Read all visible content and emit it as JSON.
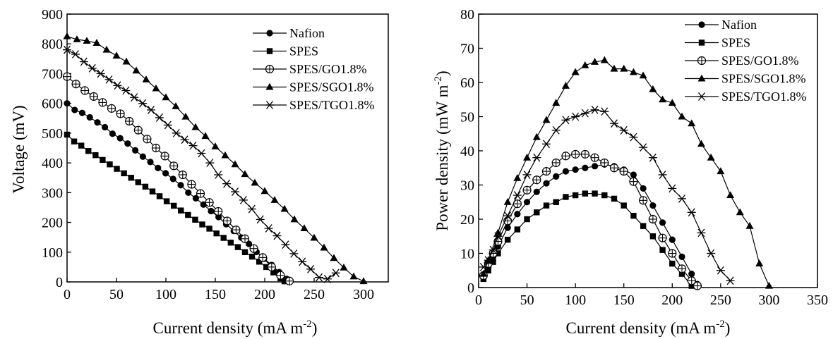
{
  "figure": {
    "charts": [
      {
        "id": "voltage",
        "ylabel_main": "Voltage (mV)",
        "xlabel_main": "Current density (mA m",
        "xlabel_sup": "-2",
        "xlabel_end": ")"
      },
      {
        "id": "power",
        "ylabel_main": "Power density (mW m",
        "ylabel_sup": "-2",
        "ylabel_end": ")",
        "xlabel_main": "Current density (mA m",
        "xlabel_sup": "-2",
        "xlabel_end": ")"
      }
    ]
  },
  "chart_data": [
    {
      "type": "line",
      "xlabel": "Current density (mA m-2)",
      "ylabel": "Voltage (mV)",
      "xlim": [
        0,
        325
      ],
      "ylim": [
        0,
        900
      ],
      "xticks": [
        0,
        50,
        100,
        150,
        200,
        250,
        300
      ],
      "yticks": [
        0,
        100,
        200,
        300,
        400,
        500,
        600,
        700,
        800,
        900
      ],
      "grid": false,
      "legend_position": "top-right",
      "series": [
        {
          "name": "Nafion",
          "marker": "circle-filled",
          "x": [
            0,
            7.7,
            15.3,
            23,
            30.7,
            38.3,
            46,
            53.7,
            61.3,
            69,
            76.7,
            84.3,
            92,
            99.7,
            107.3,
            115,
            122.7,
            130.3,
            138,
            145.7,
            153.3,
            161,
            168.7,
            176.3,
            184,
            191.7,
            199.3,
            207,
            214.7,
            222.3,
            226
          ],
          "y": [
            600,
            578,
            568,
            553,
            536,
            520,
            498,
            483,
            465,
            442,
            421,
            403,
            383,
            365,
            346,
            325,
            300,
            281,
            260,
            238,
            218,
            194,
            171,
            149,
            128,
            101,
            78,
            57,
            33,
            10,
            2
          ]
        },
        {
          "name": "SPES",
          "marker": "square-filled",
          "x": [
            0,
            7.2,
            14.4,
            21.6,
            28.8,
            36,
            43.2,
            50.4,
            57.6,
            64.8,
            72,
            79.2,
            86.4,
            93.6,
            100.8,
            108,
            115.2,
            122.4,
            129.6,
            136.8,
            144,
            151.2,
            158.4,
            165.6,
            172.8,
            180,
            187.2,
            194.4,
            201.6,
            208.8,
            216,
            220
          ],
          "y": [
            495,
            472,
            458,
            440,
            426,
            410,
            395,
            380,
            365,
            350,
            335,
            320,
            304,
            288,
            271,
            256,
            240,
            225,
            209,
            193,
            179,
            163,
            148,
            132,
            117,
            100,
            85,
            68,
            50,
            32,
            12,
            2
          ]
        },
        {
          "name": "SPES/GO1.8%",
          "marker": "circle-crosshair",
          "x": [
            0,
            9,
            18,
            27,
            36,
            45,
            54,
            63,
            72,
            81,
            90,
            99,
            108,
            117,
            126,
            135,
            144,
            153,
            162,
            171,
            180,
            189,
            198,
            207,
            216,
            225
          ],
          "y": [
            690,
            665,
            643,
            623,
            603,
            583,
            565,
            540,
            510,
            480,
            450,
            423,
            390,
            360,
            328,
            297,
            267,
            237,
            205,
            175,
            145,
            112,
            82,
            50,
            22,
            3
          ]
        },
        {
          "name": "SPES/SGO1.8%",
          "marker": "triangle-filled",
          "x": [
            0,
            10,
            20,
            30,
            40,
            50,
            60,
            70,
            80,
            90,
            100,
            110,
            120,
            130,
            140,
            150,
            160,
            170,
            180,
            190,
            200,
            210,
            220,
            230,
            240,
            250,
            260,
            270,
            280,
            290,
            300
          ],
          "y": [
            825,
            815,
            810,
            803,
            780,
            760,
            740,
            710,
            680,
            650,
            620,
            590,
            555,
            520,
            490,
            455,
            425,
            395,
            362,
            333,
            305,
            275,
            245,
            210,
            180,
            148,
            115,
            80,
            48,
            18,
            2
          ]
        },
        {
          "name": "SPES/TGO1.8%",
          "marker": "asterisk",
          "x": [
            0,
            8.5,
            17,
            25.5,
            34,
            42.5,
            51,
            59.5,
            68,
            76.5,
            85,
            93.5,
            102,
            110.5,
            119,
            127.5,
            136,
            144.5,
            153,
            161.5,
            170,
            178.5,
            187,
            195.5,
            204,
            212.5,
            221,
            229.5,
            238,
            246.5,
            255,
            263.5,
            272
          ],
          "y": [
            780,
            765,
            740,
            718,
            700,
            680,
            660,
            643,
            620,
            600,
            578,
            552,
            527,
            500,
            478,
            458,
            432,
            400,
            360,
            330,
            303,
            275,
            245,
            210,
            180,
            155,
            125,
            95,
            68,
            43,
            15,
            10,
            30
          ]
        }
      ]
    },
    {
      "type": "line",
      "xlabel": "Current density (mA m-2)",
      "ylabel": "Power density (mW m-2)",
      "xlim": [
        0,
        350
      ],
      "ylim": [
        0,
        80
      ],
      "xticks": [
        0,
        50,
        100,
        150,
        200,
        250,
        300,
        350
      ],
      "yticks": [
        0,
        10,
        20,
        30,
        40,
        50,
        60,
        70,
        80
      ],
      "grid": false,
      "legend_position": "top-right",
      "series": [
        {
          "name": "Nafion",
          "marker": "circle-filled",
          "x": [
            5,
            10,
            15,
            20,
            30,
            40,
            50,
            60,
            70,
            80,
            90,
            100,
            110,
            120,
            130,
            140,
            150,
            160,
            170,
            180,
            190,
            200,
            210,
            220,
            226
          ],
          "y": [
            3,
            6,
            9,
            12,
            17.5,
            21.5,
            25,
            28,
            30.5,
            32.5,
            34,
            34.5,
            35,
            35.5,
            36,
            35.5,
            34.5,
            33,
            29,
            24,
            19,
            14,
            9,
            4,
            1
          ]
        },
        {
          "name": "SPES",
          "marker": "square-filled",
          "x": [
            5,
            10,
            15,
            20,
            30,
            40,
            50,
            60,
            70,
            80,
            90,
            100,
            110,
            120,
            130,
            140,
            150,
            160,
            170,
            180,
            190,
            200,
            210,
            220
          ],
          "y": [
            2.5,
            5,
            7.5,
            10,
            14,
            17,
            20,
            22,
            24,
            25,
            26.5,
            27,
            27.5,
            27.5,
            27,
            26,
            24,
            21,
            18,
            15,
            11,
            7,
            4,
            0.5
          ]
        },
        {
          "name": "SPES/GO1.8%",
          "marker": "circle-crosshair",
          "x": [
            5,
            10,
            15,
            20,
            30,
            40,
            50,
            60,
            70,
            80,
            90,
            100,
            110,
            120,
            130,
            140,
            150,
            160,
            170,
            180,
            190,
            200,
            210,
            220,
            226
          ],
          "y": [
            3.5,
            7,
            10,
            13.5,
            19.5,
            24.5,
            28.5,
            31.5,
            34,
            36.5,
            38.5,
            39,
            39,
            38,
            36.5,
            35,
            34,
            31,
            25.5,
            20,
            14.5,
            10,
            5.5,
            2,
            0.5
          ]
        },
        {
          "name": "SPES/SGO1.8%",
          "marker": "triangle-filled",
          "x": [
            5,
            10,
            20,
            30,
            40,
            50,
            60,
            70,
            80,
            90,
            100,
            110,
            120,
            130,
            140,
            150,
            160,
            170,
            180,
            190,
            200,
            210,
            220,
            230,
            240,
            250,
            260,
            270,
            280,
            290,
            300
          ],
          "y": [
            4,
            8,
            16,
            25,
            32,
            38,
            44,
            49,
            54,
            59,
            63,
            65,
            66,
            66.5,
            64,
            64,
            63,
            62,
            58,
            55,
            54,
            50,
            48,
            42,
            38,
            34,
            27,
            22,
            18,
            7,
            0.5
          ]
        },
        {
          "name": "SPES/TGO1.8%",
          "marker": "asterisk",
          "x": [
            5,
            10,
            15,
            20,
            30,
            40,
            50,
            60,
            70,
            80,
            90,
            100,
            110,
            120,
            130,
            140,
            150,
            160,
            170,
            180,
            190,
            200,
            210,
            220,
            230,
            240,
            250,
            260
          ],
          "y": [
            6,
            8,
            11,
            15,
            21,
            27,
            33,
            38,
            42,
            46,
            49,
            50,
            51,
            52,
            51.5,
            48,
            46,
            44,
            41,
            38,
            33,
            29,
            26,
            22,
            16,
            10,
            5,
            2
          ]
        }
      ]
    }
  ]
}
